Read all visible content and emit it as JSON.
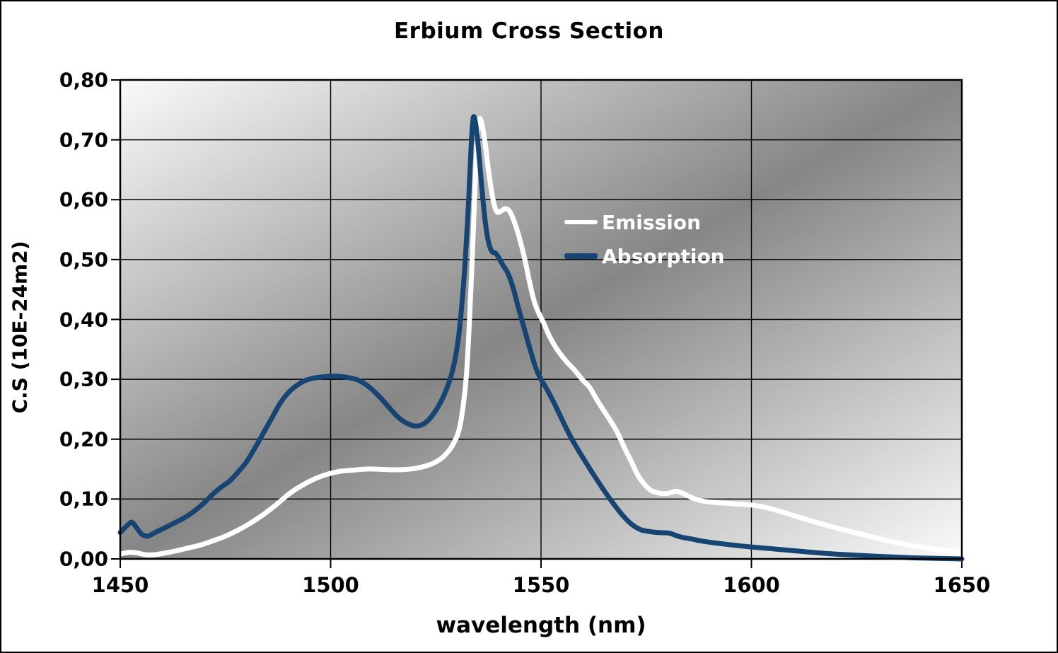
{
  "title": "Erbium Cross Section",
  "axes": {
    "x": {
      "label": "wavelength (nm)",
      "min": 1450,
      "max": 1650,
      "ticks": [
        1450,
        1500,
        1550,
        1600,
        1650
      ],
      "tick_labels": [
        "1450",
        "1500",
        "1550",
        "1600",
        "1650"
      ]
    },
    "y": {
      "label": "C.S (10E-24m2)",
      "min": 0.0,
      "max": 0.8,
      "ticks": [
        0.0,
        0.1,
        0.2,
        0.3,
        0.4,
        0.5,
        0.6,
        0.7,
        0.8
      ],
      "tick_labels": [
        "0,00",
        "0,10",
        "0,20",
        "0,30",
        "0,40",
        "0,50",
        "0,60",
        "0,70",
        "0,80"
      ]
    }
  },
  "legend": {
    "entries": [
      {
        "label": "Emission",
        "color": "#ffffff"
      },
      {
        "label": "Absorption",
        "color": "#164573"
      }
    ]
  },
  "colors": {
    "emission_line": "#ffffff",
    "absorption_line": "#164573",
    "gridline": "#000000",
    "plot_border": "#000000",
    "text": "#000000",
    "outer_background": "#ffffff",
    "plot_gradient_light": "#fafafa",
    "plot_gradient_dark": "#868686"
  },
  "chart_data": {
    "type": "line",
    "title": "Erbium Cross Section",
    "xlabel": "wavelength (nm)",
    "ylabel": "C.S (10E-24m2)",
    "xlim": [
      1450,
      1650
    ],
    "ylim": [
      0.0,
      0.8
    ],
    "grid": true,
    "legend_position": "inside-upper-middle",
    "plot_background": "diagonal mirrored gray gradient (light corners top-left/bottom-right, dark band through center)",
    "series": [
      {
        "name": "Emission",
        "color": "#ffffff",
        "points": [
          [
            1450,
            0.008
          ],
          [
            1452,
            0.011
          ],
          [
            1454,
            0.01
          ],
          [
            1456,
            0.007
          ],
          [
            1458,
            0.007
          ],
          [
            1460,
            0.009
          ],
          [
            1463,
            0.013
          ],
          [
            1466,
            0.018
          ],
          [
            1469,
            0.023
          ],
          [
            1472,
            0.03
          ],
          [
            1475,
            0.038
          ],
          [
            1478,
            0.048
          ],
          [
            1481,
            0.06
          ],
          [
            1484,
            0.074
          ],
          [
            1487,
            0.09
          ],
          [
            1490,
            0.108
          ],
          [
            1493,
            0.122
          ],
          [
            1496,
            0.133
          ],
          [
            1499,
            0.141
          ],
          [
            1502,
            0.146
          ],
          [
            1505,
            0.148
          ],
          [
            1508,
            0.15
          ],
          [
            1511,
            0.15
          ],
          [
            1514,
            0.149
          ],
          [
            1517,
            0.149
          ],
          [
            1520,
            0.151
          ],
          [
            1523,
            0.156
          ],
          [
            1525,
            0.162
          ],
          [
            1527,
            0.172
          ],
          [
            1529,
            0.19
          ],
          [
            1530.5,
            0.215
          ],
          [
            1531.5,
            0.255
          ],
          [
            1532.3,
            0.31
          ],
          [
            1533,
            0.4
          ],
          [
            1533.7,
            0.51
          ],
          [
            1534.3,
            0.62
          ],
          [
            1534.9,
            0.71
          ],
          [
            1535.4,
            0.735
          ],
          [
            1536,
            0.725
          ],
          [
            1536.8,
            0.69
          ],
          [
            1537.6,
            0.645
          ],
          [
            1538.6,
            0.6
          ],
          [
            1539.5,
            0.58
          ],
          [
            1540.5,
            0.581
          ],
          [
            1541.5,
            0.585
          ],
          [
            1542.5,
            0.581
          ],
          [
            1543.5,
            0.566
          ],
          [
            1544.7,
            0.54
          ],
          [
            1546,
            0.505
          ],
          [
            1547.2,
            0.465
          ],
          [
            1548.3,
            0.432
          ],
          [
            1549.3,
            0.413
          ],
          [
            1550.5,
            0.396
          ],
          [
            1552,
            0.372
          ],
          [
            1554,
            0.348
          ],
          [
            1556,
            0.33
          ],
          [
            1558,
            0.315
          ],
          [
            1560,
            0.298
          ],
          [
            1561.5,
            0.287
          ],
          [
            1563,
            0.269
          ],
          [
            1564.5,
            0.252
          ],
          [
            1566,
            0.236
          ],
          [
            1568,
            0.213
          ],
          [
            1570,
            0.183
          ],
          [
            1571.5,
            0.162
          ],
          [
            1573,
            0.14
          ],
          [
            1574.5,
            0.125
          ],
          [
            1576,
            0.115
          ],
          [
            1577.5,
            0.111
          ],
          [
            1579,
            0.109
          ],
          [
            1580.5,
            0.11
          ],
          [
            1582,
            0.113
          ],
          [
            1583.5,
            0.11
          ],
          [
            1585,
            0.105
          ],
          [
            1587,
            0.099
          ],
          [
            1589,
            0.096
          ],
          [
            1592,
            0.094
          ],
          [
            1596,
            0.092
          ],
          [
            1600,
            0.09
          ],
          [
            1604,
            0.085
          ],
          [
            1608,
            0.077
          ],
          [
            1612,
            0.068
          ],
          [
            1616,
            0.06
          ],
          [
            1620,
            0.052
          ],
          [
            1624,
            0.045
          ],
          [
            1628,
            0.038
          ],
          [
            1632,
            0.031
          ],
          [
            1636,
            0.025
          ],
          [
            1640,
            0.02
          ],
          [
            1644,
            0.016
          ],
          [
            1647,
            0.013
          ],
          [
            1650,
            0.012
          ]
        ]
      },
      {
        "name": "Absorption",
        "color": "#164573",
        "points": [
          [
            1450,
            0.044
          ],
          [
            1452,
            0.058
          ],
          [
            1453,
            0.06
          ],
          [
            1455,
            0.042
          ],
          [
            1456.5,
            0.038
          ],
          [
            1458,
            0.043
          ],
          [
            1460,
            0.05
          ],
          [
            1462,
            0.057
          ],
          [
            1464,
            0.064
          ],
          [
            1466,
            0.072
          ],
          [
            1468,
            0.082
          ],
          [
            1470,
            0.094
          ],
          [
            1472,
            0.108
          ],
          [
            1474,
            0.12
          ],
          [
            1476,
            0.13
          ],
          [
            1478,
            0.145
          ],
          [
            1480,
            0.162
          ],
          [
            1482,
            0.185
          ],
          [
            1484,
            0.21
          ],
          [
            1486,
            0.235
          ],
          [
            1488,
            0.26
          ],
          [
            1490,
            0.278
          ],
          [
            1492,
            0.29
          ],
          [
            1494,
            0.298
          ],
          [
            1496,
            0.302
          ],
          [
            1498,
            0.304
          ],
          [
            1500,
            0.305
          ],
          [
            1502,
            0.305
          ],
          [
            1504,
            0.303
          ],
          [
            1506,
            0.3
          ],
          [
            1508,
            0.293
          ],
          [
            1510,
            0.282
          ],
          [
            1512,
            0.268
          ],
          [
            1514,
            0.252
          ],
          [
            1516,
            0.237
          ],
          [
            1518,
            0.227
          ],
          [
            1520,
            0.222
          ],
          [
            1522,
            0.225
          ],
          [
            1524,
            0.238
          ],
          [
            1526,
            0.26
          ],
          [
            1527.5,
            0.283
          ],
          [
            1529,
            0.315
          ],
          [
            1530.2,
            0.36
          ],
          [
            1531.2,
            0.425
          ],
          [
            1532,
            0.5
          ],
          [
            1532.8,
            0.6
          ],
          [
            1533.4,
            0.69
          ],
          [
            1533.9,
            0.737
          ],
          [
            1534.5,
            0.725
          ],
          [
            1535.2,
            0.68
          ],
          [
            1536,
            0.615
          ],
          [
            1536.8,
            0.56
          ],
          [
            1537.6,
            0.527
          ],
          [
            1538.4,
            0.513
          ],
          [
            1539.3,
            0.51
          ],
          [
            1540.2,
            0.5
          ],
          [
            1541,
            0.49
          ],
          [
            1542.2,
            0.476
          ],
          [
            1543.4,
            0.452
          ],
          [
            1544.6,
            0.42
          ],
          [
            1546,
            0.385
          ],
          [
            1547.4,
            0.35
          ],
          [
            1548.8,
            0.318
          ],
          [
            1550,
            0.3
          ],
          [
            1551.5,
            0.282
          ],
          [
            1553,
            0.262
          ],
          [
            1554.5,
            0.24
          ],
          [
            1556,
            0.218
          ],
          [
            1557.5,
            0.198
          ],
          [
            1559,
            0.18
          ],
          [
            1560.5,
            0.163
          ],
          [
            1562,
            0.146
          ],
          [
            1563.5,
            0.13
          ],
          [
            1565,
            0.114
          ],
          [
            1566.5,
            0.099
          ],
          [
            1568,
            0.085
          ],
          [
            1569.5,
            0.072
          ],
          [
            1571,
            0.061
          ],
          [
            1572.5,
            0.053
          ],
          [
            1574,
            0.048
          ],
          [
            1576,
            0.0455
          ],
          [
            1578,
            0.044
          ],
          [
            1580,
            0.0435
          ],
          [
            1581,
            0.042
          ],
          [
            1582.5,
            0.038
          ],
          [
            1584,
            0.0355
          ],
          [
            1586,
            0.033
          ],
          [
            1588,
            0.03
          ],
          [
            1591,
            0.027
          ],
          [
            1594,
            0.0245
          ],
          [
            1597,
            0.022
          ],
          [
            1600,
            0.02
          ],
          [
            1604,
            0.0175
          ],
          [
            1608,
            0.015
          ],
          [
            1612,
            0.0125
          ],
          [
            1616,
            0.01
          ],
          [
            1620,
            0.008
          ],
          [
            1624,
            0.0065
          ],
          [
            1628,
            0.005
          ],
          [
            1632,
            0.0037
          ],
          [
            1636,
            0.0025
          ],
          [
            1640,
            0.0015
          ],
          [
            1644,
            0.001
          ],
          [
            1647,
            0.0005
          ],
          [
            1650,
            0.0
          ]
        ]
      }
    ]
  }
}
